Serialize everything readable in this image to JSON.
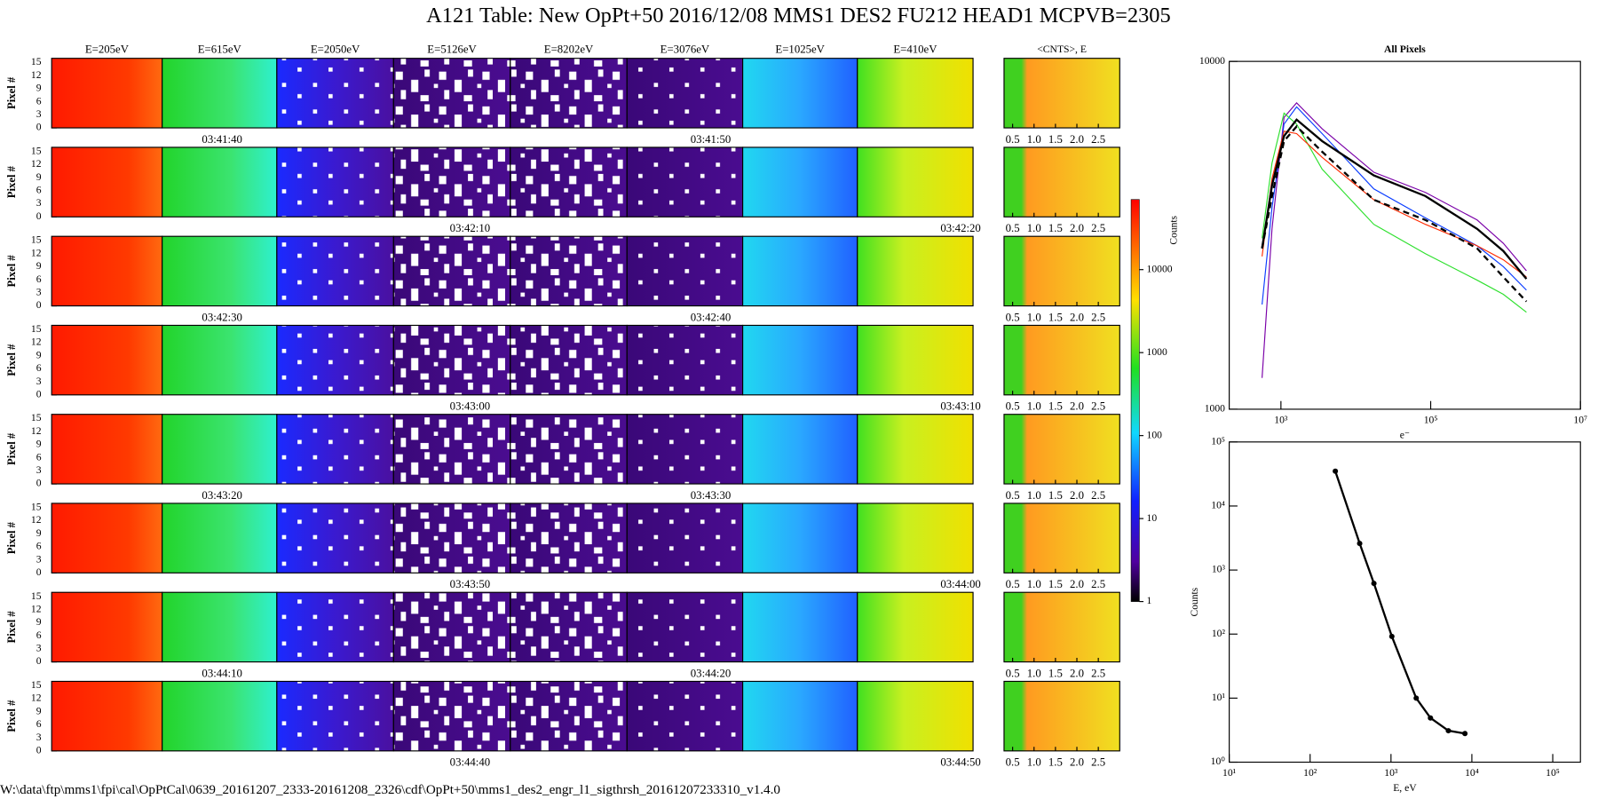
{
  "title": "A121 Table: New OpPt+50 2016/12/08   MMS1 DES2 FU212 HEAD1 MCPVB=2305",
  "footer": "W:\\data\\ftp\\mms1\\fpi\\cal\\OpPtCal\\0639_20161207_2333-20161208_2326\\cdf\\OpPt+50\\mms1_des2_engr_l1_sigthrsh_20161207233310_v1.4.0",
  "heatmap_grid": {
    "energies": [
      "E=205eV",
      "E=615eV",
      "E=2050eV",
      "E=5126eV",
      "E=8202eV",
      "E=3076eV",
      "E=1025eV",
      "E=410eV"
    ],
    "ylabel": "Pixel #",
    "ylim": [
      0,
      16
    ],
    "yticks": [
      0,
      3,
      6,
      9,
      12,
      15
    ],
    "times": [
      [
        "03:41:40",
        "03:41:50"
      ],
      [
        "03:42:10",
        "03:42:20"
      ],
      [
        "03:42:30",
        "03:42:40"
      ],
      [
        "03:43:00",
        "03:43:10"
      ],
      [
        "03:43:20",
        "03:43:30"
      ],
      [
        "03:43:50",
        "03:44:00"
      ],
      [
        "03:44:10",
        "03:44:20"
      ],
      [
        "03:44:40",
        "03:44:50"
      ]
    ],
    "side_title": "<CNTS>, E",
    "side_xlim": [
      0.3,
      3.0
    ],
    "side_xticks": [
      0.5,
      {
        "value": 1,
        "label": "1.0"
      },
      1.5,
      {
        "value": 2,
        "label": "2.0"
      },
      2.5
    ]
  },
  "colorbar": {
    "label": "Counts",
    "log": true,
    "ylim": [
      1,
      70000
    ],
    "yticks": [
      1,
      10,
      100,
      1000,
      10000
    ]
  },
  "chart_data": [
    {
      "type": "line",
      "title": "All Pixels",
      "xlabel": "e⁻",
      "log_x": true,
      "log_y": true,
      "xlim": [
        204,
        10000000
      ],
      "ylim": [
        1000,
        10000
      ],
      "xticks": [
        {
          "value": 1000,
          "label": "10³"
        },
        {
          "value": 100000,
          "label": "10⁵"
        },
        {
          "value": 10000000,
          "label": "10⁷"
        }
      ],
      "yticks": [
        1000,
        10000
      ],
      "x": [
        560,
        760,
        1100,
        1620,
        3550,
        17400,
        85000,
        417000,
        933000,
        1900000
      ],
      "series": [
        {
          "color": "#7a00a8",
          "values": [
            1230,
            3300,
            6900,
            7600,
            6400,
            4800,
            4200,
            3500,
            3000,
            2500
          ]
        },
        {
          "color": "#0a3cff",
          "values": [
            2000,
            3800,
            6600,
            7400,
            6200,
            4300,
            3550,
            2950,
            2570,
            2200
          ]
        },
        {
          "color": "#2ee02e",
          "values": [
            3100,
            5100,
            7100,
            6600,
            4900,
            3400,
            2800,
            2350,
            2140,
            1900
          ]
        },
        {
          "color": "#ff2a00",
          "values": [
            2750,
            4600,
            6300,
            6200,
            5300,
            4000,
            3400,
            2950,
            2690,
            2400
          ]
        },
        {
          "color": "#000000",
          "values": [
            2900,
            4400,
            6100,
            6800,
            5900,
            4700,
            4100,
            3300,
            2850,
            2370
          ]
        },
        {
          "color": "#000000",
          "style": "dashed",
          "values": [
            2900,
            4100,
            5900,
            6500,
            5500,
            4000,
            3500,
            2900,
            2400,
            2040
          ]
        }
      ]
    },
    {
      "type": "line",
      "ylabel": "Counts",
      "xlabel": "E, eV",
      "log_x": true,
      "log_y": true,
      "marker": true,
      "xlim": [
        10,
        220000
      ],
      "ylim": [
        1,
        100000
      ],
      "xticks": [
        {
          "value": 10,
          "label": "10¹"
        },
        {
          "value": 100,
          "label": "10²"
        },
        {
          "value": 1000,
          "label": "10³"
        },
        {
          "value": 10000,
          "label": "10⁴"
        },
        {
          "value": 100000,
          "label": "10⁵"
        }
      ],
      "yticks": [
        {
          "value": 1,
          "label": "10⁰"
        },
        {
          "value": 10,
          "label": "10¹"
        },
        {
          "value": 100,
          "label": "10²"
        },
        {
          "value": 1000,
          "label": "10³"
        },
        {
          "value": 10000,
          "label": "10⁴"
        },
        {
          "value": 100000,
          "label": "10⁵"
        }
      ],
      "x": [
        205,
        410,
        615,
        1025,
        2050,
        3076,
        5126,
        8202
      ],
      "series": [
        {
          "color": "#000000",
          "values": [
            35000,
            2600,
            620,
            92,
            10,
            4.9,
            3.1,
            2.8
          ]
        }
      ]
    }
  ]
}
